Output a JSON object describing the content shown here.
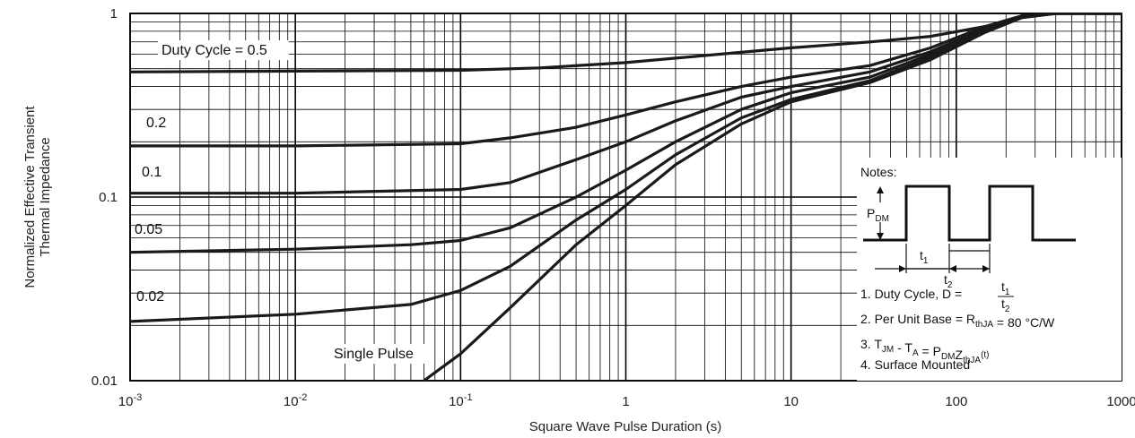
{
  "chart_data": {
    "type": "line",
    "title": "",
    "xlabel": "Square Wave Pulse Duration (s)",
    "ylabel": [
      "Normalized Effective Transient",
      "Thermal Impedance"
    ],
    "x_scale": "log",
    "y_scale": "log",
    "xlim": [
      0.001,
      1000
    ],
    "ylim": [
      0.01,
      1
    ],
    "x_ticks": [
      {
        "value": 0.001,
        "base": "10",
        "exp": "-3"
      },
      {
        "value": 0.01,
        "base": "10",
        "exp": "-2"
      },
      {
        "value": 0.1,
        "base": "10",
        "exp": "-1"
      },
      {
        "value": 1,
        "base": "1",
        "exp": ""
      },
      {
        "value": 10,
        "base": "10",
        "exp": ""
      },
      {
        "value": 100,
        "base": "100",
        "exp": ""
      },
      {
        "value": 1000,
        "base": "1000",
        "exp": ""
      }
    ],
    "y_ticks": [
      {
        "value": 1,
        "label": "1"
      },
      {
        "value": 0.1,
        "label": "0.1"
      },
      {
        "value": 0.01,
        "label": "0.01"
      }
    ],
    "grid": true,
    "series": [
      {
        "name": "Duty Cycle = 0.5",
        "label_pos": "top-left",
        "points": [
          [
            0.001,
            0.48
          ],
          [
            0.01,
            0.485
          ],
          [
            0.1,
            0.49
          ],
          [
            0.3,
            0.505
          ],
          [
            1,
            0.54
          ],
          [
            3,
            0.59
          ],
          [
            10,
            0.65
          ],
          [
            30,
            0.7
          ],
          [
            70,
            0.75
          ],
          [
            150,
            0.85
          ],
          [
            250,
            0.97
          ],
          [
            400,
            1.0
          ],
          [
            1000,
            1.0
          ]
        ]
      },
      {
        "name": "0.2",
        "label_pos": "left",
        "points": [
          [
            0.001,
            0.19
          ],
          [
            0.01,
            0.19
          ],
          [
            0.1,
            0.195
          ],
          [
            0.2,
            0.21
          ],
          [
            0.5,
            0.24
          ],
          [
            1,
            0.28
          ],
          [
            2,
            0.33
          ],
          [
            5,
            0.4
          ],
          [
            10,
            0.45
          ],
          [
            30,
            0.52
          ],
          [
            70,
            0.65
          ],
          [
            150,
            0.85
          ],
          [
            250,
            0.97
          ],
          [
            400,
            1.0
          ],
          [
            1000,
            1.0
          ]
        ]
      },
      {
        "name": "0.1",
        "label_pos": "left",
        "points": [
          [
            0.001,
            0.105
          ],
          [
            0.01,
            0.105
          ],
          [
            0.1,
            0.11
          ],
          [
            0.2,
            0.12
          ],
          [
            0.5,
            0.16
          ],
          [
            1,
            0.2
          ],
          [
            2,
            0.26
          ],
          [
            5,
            0.35
          ],
          [
            10,
            0.4
          ],
          [
            30,
            0.48
          ],
          [
            70,
            0.62
          ],
          [
            150,
            0.83
          ],
          [
            250,
            0.96
          ],
          [
            400,
            1.0
          ],
          [
            1000,
            1.0
          ]
        ]
      },
      {
        "name": "0.05",
        "label_pos": "left",
        "points": [
          [
            0.001,
            0.05
          ],
          [
            0.01,
            0.052
          ],
          [
            0.05,
            0.055
          ],
          [
            0.1,
            0.058
          ],
          [
            0.2,
            0.068
          ],
          [
            0.5,
            0.1
          ],
          [
            1,
            0.14
          ],
          [
            2,
            0.2
          ],
          [
            5,
            0.3
          ],
          [
            10,
            0.37
          ],
          [
            30,
            0.45
          ],
          [
            70,
            0.6
          ],
          [
            150,
            0.82
          ],
          [
            250,
            0.96
          ],
          [
            400,
            1.0
          ],
          [
            1000,
            1.0
          ]
        ]
      },
      {
        "name": "0.02",
        "label_pos": "left",
        "points": [
          [
            0.001,
            0.021
          ],
          [
            0.01,
            0.023
          ],
          [
            0.05,
            0.026
          ],
          [
            0.1,
            0.031
          ],
          [
            0.2,
            0.042
          ],
          [
            0.5,
            0.075
          ],
          [
            1,
            0.11
          ],
          [
            2,
            0.17
          ],
          [
            5,
            0.27
          ],
          [
            10,
            0.34
          ],
          [
            30,
            0.43
          ],
          [
            70,
            0.58
          ],
          [
            150,
            0.8
          ],
          [
            250,
            0.95
          ],
          [
            400,
            1.0
          ],
          [
            1000,
            1.0
          ]
        ]
      },
      {
        "name": "Single Pulse",
        "label_pos": "bottom",
        "points": [
          [
            0.06,
            0.01
          ],
          [
            0.1,
            0.014
          ],
          [
            0.2,
            0.025
          ],
          [
            0.5,
            0.055
          ],
          [
            1,
            0.09
          ],
          [
            2,
            0.15
          ],
          [
            5,
            0.25
          ],
          [
            10,
            0.33
          ],
          [
            30,
            0.42
          ],
          [
            70,
            0.56
          ],
          [
            150,
            0.79
          ],
          [
            250,
            0.95
          ],
          [
            400,
            1.0
          ],
          [
            1000,
            1.0
          ]
        ]
      }
    ],
    "notes": {
      "heading": "Notes:",
      "pdm": "P",
      "pdm_sub": "DM",
      "t1": "t",
      "t1_sub": "1",
      "t2": "t",
      "t2_sub": "2",
      "items": [
        {
          "parts": [
            [
              "1. Duty Cycle, D = ",
              ""
            ]
          ],
          "fraction": {
            "num": "t",
            "num_sub": "1",
            "den": "t",
            "den_sub": "2"
          }
        },
        {
          "parts": [
            [
              "2. Per Unit Base = R",
              ""
            ],
            [
              "thJA",
              "sub"
            ],
            [
              " = 80 °C/W",
              ""
            ]
          ]
        },
        {
          "parts": [
            [
              "3. T",
              ""
            ],
            [
              "JM",
              "sub"
            ],
            [
              " - T",
              ""
            ],
            [
              "A",
              "sub"
            ],
            [
              " = P",
              ""
            ],
            [
              "DM",
              "sub"
            ],
            [
              "Z",
              ""
            ],
            [
              "thJA",
              "sub"
            ],
            [
              "(t)",
              "sup"
            ]
          ]
        },
        {
          "parts": [
            [
              "4. Surface Mounted",
              ""
            ]
          ]
        }
      ]
    }
  }
}
